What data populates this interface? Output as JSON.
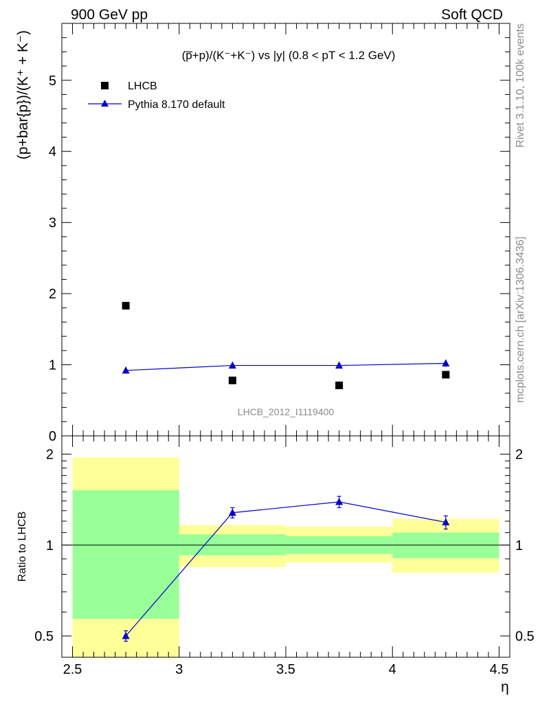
{
  "header": {
    "left": "900 GeV pp",
    "right": "Soft QCD"
  },
  "side_text": {
    "top": "Rivet 3.1.10,  100k events",
    "bottom": "mcplots.cern.ch [arXiv:1306.3436]"
  },
  "chart_data": [
    {
      "type": "scatter",
      "title": "(p̅+p)/(K⁻+K⁻) vs |y| (0.8 < pT < 1.2 GeV)",
      "ylabel": "(p+bar{p})/(K⁺ + K⁻)",
      "watermark": "LHCB_2012_I1119400",
      "ylim": [
        0,
        5.8
      ],
      "yticks": [
        "0",
        "1",
        "2",
        "3",
        "4",
        "5"
      ],
      "xlim": [
        2.45,
        4.55
      ],
      "legend_position": "top-left",
      "series": [
        {
          "name": "LHCB",
          "marker": "square",
          "color": "#000000",
          "x": [
            2.75,
            3.25,
            3.75,
            4.25
          ],
          "y": [
            1.83,
            0.78,
            0.71,
            0.86
          ]
        },
        {
          "name": "Pythia 8.170 default",
          "marker": "triangle",
          "color": "#0000cc",
          "x": [
            2.75,
            3.25,
            3.75,
            4.25
          ],
          "y": [
            0.92,
            0.99,
            0.99,
            1.02
          ],
          "yerr": [
            0.02,
            0.04,
            0.04,
            0.05
          ]
        }
      ]
    },
    {
      "type": "scatter",
      "ylabel": "Ratio to LHCB",
      "xlabel": "η",
      "ylim": [
        0.425,
        2.3
      ],
      "yscale": "log",
      "yticks": [
        "0.5",
        "1",
        "2"
      ],
      "xticks": [
        "2.5",
        "3",
        "3.5",
        "4",
        "4.5"
      ],
      "xlim": [
        2.45,
        4.55
      ],
      "reference_line": 1.0,
      "bands": [
        {
          "x0": 2.5,
          "x1": 3.0,
          "green": [
            0.57,
            1.52
          ],
          "yellow": [
            0.4,
            1.95
          ]
        },
        {
          "x0": 3.0,
          "x1": 3.5,
          "green": [
            0.925,
            1.085
          ],
          "yellow": [
            0.845,
            1.165
          ]
        },
        {
          "x0": 3.5,
          "x1": 4.0,
          "green": [
            0.935,
            1.07
          ],
          "yellow": [
            0.875,
            1.15
          ]
        },
        {
          "x0": 4.0,
          "x1": 4.5,
          "green": [
            0.905,
            1.1
          ],
          "yellow": [
            0.81,
            1.22
          ]
        }
      ],
      "series": [
        {
          "name": "Pythia 8.170 default",
          "marker": "triangle",
          "color": "#0000cc",
          "x": [
            2.75,
            3.25,
            3.75,
            4.25
          ],
          "y": [
            0.5,
            1.28,
            1.39,
            1.19
          ],
          "yerr": [
            0.02,
            0.05,
            0.06,
            0.06
          ]
        }
      ]
    }
  ]
}
